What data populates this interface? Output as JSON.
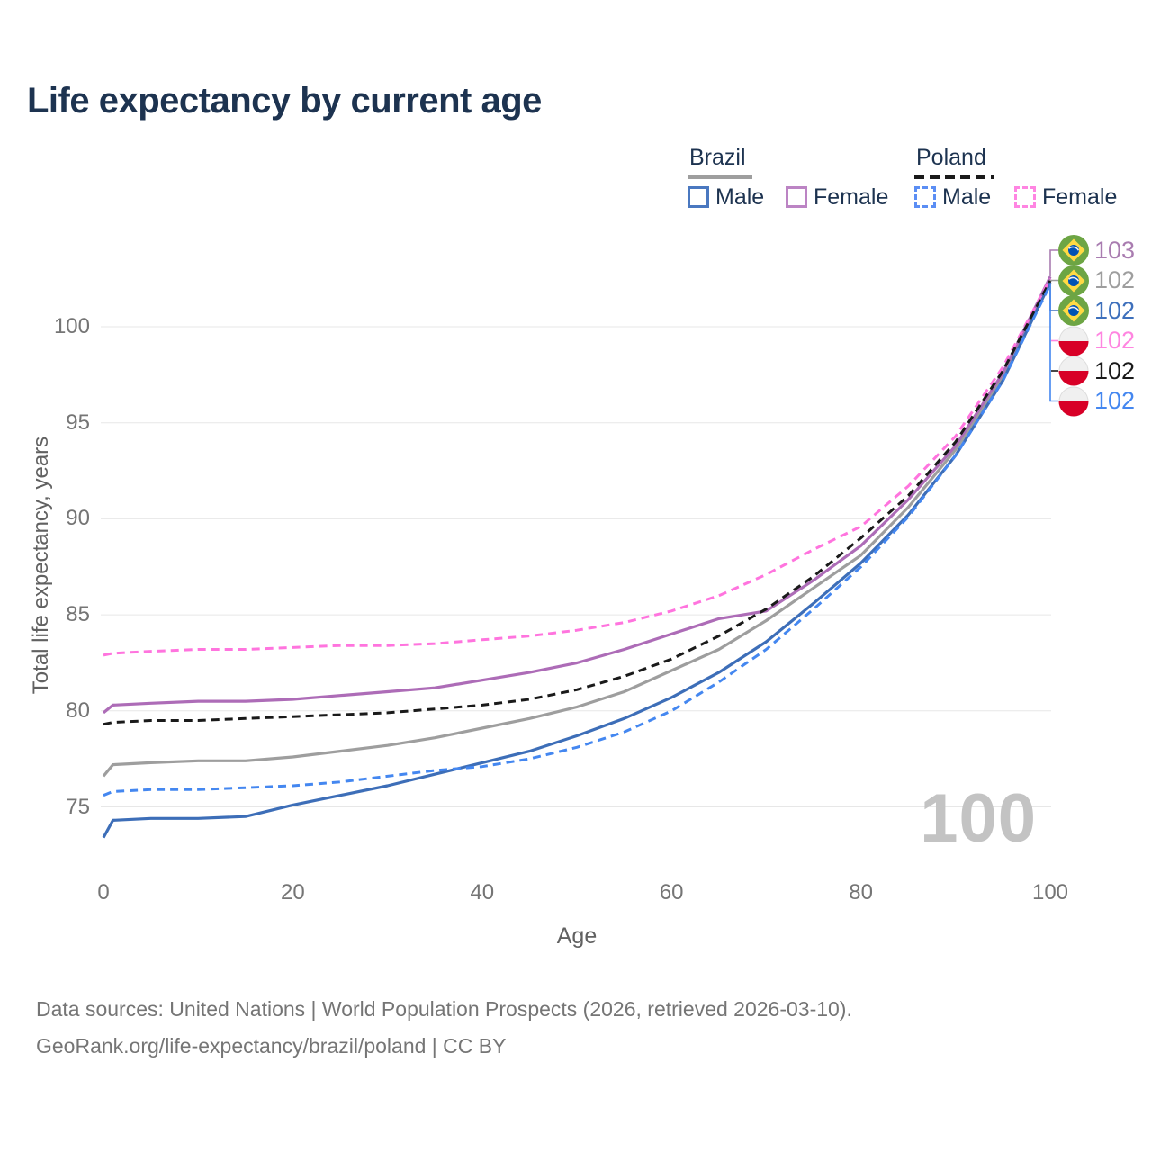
{
  "title": "Life expectancy by current age",
  "legend": {
    "groups": [
      {
        "label": "Brazil",
        "line_style": "solid",
        "underline_color": "#9e9e9e",
        "items": [
          {
            "label": "Male",
            "color": "#4a78c0",
            "dashed": false
          },
          {
            "label": "Female",
            "color": "#bc84c4",
            "dashed": false
          }
        ]
      },
      {
        "label": "Poland",
        "line_style": "dashed",
        "underline_color": "#1a1a1a",
        "items": [
          {
            "label": "Male",
            "color": "#5b8ef4",
            "dashed": true
          },
          {
            "label": "Female",
            "color": "#ff85e2",
            "dashed": true
          }
        ]
      }
    ]
  },
  "chart_data": {
    "type": "line",
    "title": "Life expectancy by current age",
    "xlabel": "Age",
    "ylabel": "Total life expectancy, years",
    "xlim": [
      0,
      100
    ],
    "ylim": [
      73,
      103.5
    ],
    "xticks": [
      0,
      20,
      40,
      60,
      80,
      100
    ],
    "yticks": [
      75,
      80,
      85,
      90,
      95,
      100
    ],
    "grid": "horizontal",
    "legend_position": "top-right",
    "series": [
      {
        "id": "brazil_total",
        "name": "Brazil (both sexes)",
        "country": "Brazil",
        "sex": "Total",
        "color": "#9e9e9e",
        "dashed": false,
        "points": [
          [
            0,
            76.6
          ],
          [
            1,
            77.2
          ],
          [
            5,
            77.3
          ],
          [
            10,
            77.4
          ],
          [
            15,
            77.4
          ],
          [
            20,
            77.6
          ],
          [
            25,
            77.9
          ],
          [
            30,
            78.2
          ],
          [
            35,
            78.6
          ],
          [
            40,
            79.1
          ],
          [
            45,
            79.6
          ],
          [
            50,
            80.2
          ],
          [
            55,
            81.0
          ],
          [
            60,
            82.1
          ],
          [
            65,
            83.2
          ],
          [
            70,
            84.7
          ],
          [
            75,
            86.4
          ],
          [
            80,
            88.1
          ],
          [
            85,
            90.6
          ],
          [
            90,
            93.6
          ],
          [
            95,
            97.4
          ],
          [
            100,
            102.4
          ]
        ]
      },
      {
        "id": "brazil_female",
        "name": "Brazil Female",
        "country": "Brazil",
        "sex": "Female",
        "color": "#ad6cb7",
        "dashed": false,
        "points": [
          [
            0,
            79.9
          ],
          [
            1,
            80.3
          ],
          [
            5,
            80.4
          ],
          [
            10,
            80.5
          ],
          [
            15,
            80.5
          ],
          [
            20,
            80.6
          ],
          [
            25,
            80.8
          ],
          [
            30,
            81.0
          ],
          [
            35,
            81.2
          ],
          [
            40,
            81.6
          ],
          [
            45,
            82.0
          ],
          [
            50,
            82.5
          ],
          [
            55,
            83.2
          ],
          [
            60,
            84.0
          ],
          [
            65,
            84.8
          ],
          [
            70,
            85.2
          ],
          [
            75,
            86.8
          ],
          [
            80,
            88.6
          ],
          [
            85,
            91.0
          ],
          [
            90,
            93.8
          ],
          [
            95,
            97.6
          ],
          [
            100,
            102.6
          ]
        ]
      },
      {
        "id": "brazil_male",
        "name": "Brazil Male",
        "country": "Brazil",
        "sex": "Male",
        "color": "#3d6eb8",
        "dashed": false,
        "points": [
          [
            0,
            73.4
          ],
          [
            1,
            74.3
          ],
          [
            5,
            74.4
          ],
          [
            10,
            74.4
          ],
          [
            15,
            74.5
          ],
          [
            20,
            75.1
          ],
          [
            25,
            75.6
          ],
          [
            30,
            76.1
          ],
          [
            35,
            76.7
          ],
          [
            40,
            77.3
          ],
          [
            45,
            77.9
          ],
          [
            50,
            78.7
          ],
          [
            55,
            79.6
          ],
          [
            60,
            80.7
          ],
          [
            65,
            82.0
          ],
          [
            70,
            83.6
          ],
          [
            75,
            85.6
          ],
          [
            80,
            87.7
          ],
          [
            85,
            90.2
          ],
          [
            90,
            93.3
          ],
          [
            95,
            97.2
          ],
          [
            100,
            102.3
          ]
        ]
      },
      {
        "id": "poland_female",
        "name": "Poland Female",
        "country": "Poland",
        "sex": "Female",
        "color": "#ff74de",
        "dashed": true,
        "points": [
          [
            0,
            82.9
          ],
          [
            1,
            83.0
          ],
          [
            5,
            83.1
          ],
          [
            10,
            83.2
          ],
          [
            15,
            83.2
          ],
          [
            20,
            83.3
          ],
          [
            25,
            83.4
          ],
          [
            30,
            83.4
          ],
          [
            35,
            83.5
          ],
          [
            40,
            83.7
          ],
          [
            45,
            83.9
          ],
          [
            50,
            84.2
          ],
          [
            55,
            84.6
          ],
          [
            60,
            85.2
          ],
          [
            65,
            86.0
          ],
          [
            70,
            87.1
          ],
          [
            75,
            88.4
          ],
          [
            80,
            89.6
          ],
          [
            85,
            91.7
          ],
          [
            90,
            94.3
          ],
          [
            95,
            97.9
          ],
          [
            100,
            102.5
          ]
        ]
      },
      {
        "id": "poland_total",
        "name": "Poland (both sexes)",
        "country": "Poland",
        "sex": "Total",
        "color": "#1a1a1a",
        "dashed": true,
        "points": [
          [
            0,
            79.3
          ],
          [
            1,
            79.4
          ],
          [
            5,
            79.5
          ],
          [
            10,
            79.5
          ],
          [
            15,
            79.6
          ],
          [
            20,
            79.7
          ],
          [
            25,
            79.8
          ],
          [
            30,
            79.9
          ],
          [
            35,
            80.1
          ],
          [
            40,
            80.3
          ],
          [
            45,
            80.6
          ],
          [
            50,
            81.1
          ],
          [
            55,
            81.8
          ],
          [
            60,
            82.7
          ],
          [
            65,
            83.9
          ],
          [
            70,
            85.3
          ],
          [
            75,
            87.0
          ],
          [
            80,
            89.0
          ],
          [
            85,
            91.2
          ],
          [
            90,
            94.0
          ],
          [
            95,
            97.7
          ],
          [
            100,
            102.4
          ]
        ]
      },
      {
        "id": "poland_male",
        "name": "Poland Male",
        "country": "Poland",
        "sex": "Male",
        "color": "#4487f0",
        "dashed": true,
        "points": [
          [
            0,
            75.6
          ],
          [
            1,
            75.8
          ],
          [
            5,
            75.9
          ],
          [
            10,
            75.9
          ],
          [
            15,
            76.0
          ],
          [
            20,
            76.1
          ],
          [
            25,
            76.3
          ],
          [
            30,
            76.6
          ],
          [
            35,
            76.9
          ],
          [
            40,
            77.1
          ],
          [
            45,
            77.5
          ],
          [
            50,
            78.1
          ],
          [
            55,
            78.9
          ],
          [
            60,
            80.0
          ],
          [
            65,
            81.5
          ],
          [
            70,
            83.2
          ],
          [
            75,
            85.3
          ],
          [
            80,
            87.5
          ],
          [
            85,
            90.1
          ],
          [
            90,
            93.3
          ],
          [
            95,
            97.2
          ],
          [
            100,
            102.2
          ]
        ]
      }
    ]
  },
  "right_labels": [
    {
      "series": "brazil_female",
      "flag": "brazil",
      "value": "103",
      "color": "#a97cb0"
    },
    {
      "series": "brazil_total",
      "flag": "brazil",
      "value": "102",
      "color": "#9e9e9e"
    },
    {
      "series": "brazil_male",
      "flag": "brazil",
      "value": "102",
      "color": "#3e70bc"
    },
    {
      "series": "poland_female",
      "flag": "poland",
      "value": "102",
      "color": "#ff85e0"
    },
    {
      "series": "poland_total",
      "flag": "poland",
      "value": "102",
      "color": "#1a1a1a"
    },
    {
      "series": "poland_male",
      "flag": "poland",
      "value": "102",
      "color": "#4487f0"
    }
  ],
  "watermark": "100",
  "footer": {
    "line1": "Data sources: United Nations | World Population Prospects (2026, retrieved 2026-03-10).",
    "line2": "GeoRank.org/life-expectancy/brazil/poland | CC BY"
  },
  "colors": {
    "title_text": "#1d3350",
    "axis_text": "#757575",
    "grid_line": "#e7e7e7",
    "watermark": "#c3c3c3",
    "flag_brazil_green": "#6DA544",
    "flag_brazil_yellow": "#FFDA44",
    "flag_brazil_blue": "#0052B4",
    "flag_poland_white": "#F0F0F0",
    "flag_poland_red": "#D80027"
  }
}
